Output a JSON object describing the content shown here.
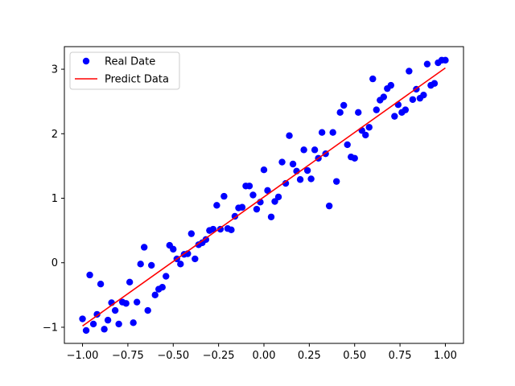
{
  "chart_data": {
    "type": "scatter",
    "title": "",
    "xlabel": "",
    "ylabel": "",
    "xlim": [
      -1.1,
      1.1
    ],
    "ylim": [
      -1.25,
      3.35
    ],
    "xticks": [
      -1.0,
      -0.75,
      -0.5,
      -0.25,
      0.0,
      0.25,
      0.5,
      0.75,
      1.0
    ],
    "xtick_labels": [
      "−1.00",
      "−0.75",
      "−0.50",
      "−0.25",
      "0.00",
      "0.25",
      "0.50",
      "0.75",
      "1.00"
    ],
    "yticks": [
      -1,
      0,
      1,
      2,
      3
    ],
    "ytick_labels": [
      "−1",
      "0",
      "1",
      "2",
      "3"
    ],
    "grid": false,
    "legend_position": "top-left",
    "series": [
      {
        "name": "Real Date",
        "kind": "scatter",
        "color": "#0000ff",
        "x": [
          -1.0,
          -0.98,
          -0.96,
          -0.94,
          -0.92,
          -0.9,
          -0.88,
          -0.86,
          -0.84,
          -0.82,
          -0.8,
          -0.78,
          -0.76,
          -0.74,
          -0.72,
          -0.7,
          -0.68,
          -0.66,
          -0.64,
          -0.62,
          -0.6,
          -0.58,
          -0.56,
          -0.54,
          -0.52,
          -0.5,
          -0.48,
          -0.46,
          -0.44,
          -0.42,
          -0.4,
          -0.38,
          -0.36,
          -0.34,
          -0.32,
          -0.3,
          -0.28,
          -0.26,
          -0.24,
          -0.22,
          -0.2,
          -0.18,
          -0.16,
          -0.14,
          -0.12,
          -0.1,
          -0.08,
          -0.06,
          -0.04,
          -0.02,
          0.0,
          0.02,
          0.04,
          0.06,
          0.08,
          0.1,
          0.12,
          0.14,
          0.16,
          0.18,
          0.2,
          0.22,
          0.24,
          0.26,
          0.28,
          0.3,
          0.32,
          0.34,
          0.36,
          0.38,
          0.4,
          0.42,
          0.44,
          0.46,
          0.48,
          0.5,
          0.52,
          0.54,
          0.56,
          0.58,
          0.6,
          0.62,
          0.64,
          0.66,
          0.68,
          0.7,
          0.72,
          0.74,
          0.76,
          0.78,
          0.8,
          0.82,
          0.84,
          0.86,
          0.88,
          0.9,
          0.92,
          0.94,
          0.96,
          0.98,
          1.0
        ],
        "y": [
          -0.87,
          -1.05,
          -0.19,
          -0.95,
          -0.8,
          -0.33,
          -1.03,
          -0.89,
          -0.62,
          -0.74,
          -0.95,
          -0.61,
          -0.63,
          -0.3,
          -0.93,
          -0.61,
          -0.02,
          0.24,
          -0.74,
          -0.04,
          -0.5,
          -0.41,
          -0.38,
          -0.21,
          0.27,
          0.21,
          0.06,
          -0.02,
          0.13,
          0.14,
          0.45,
          0.06,
          0.28,
          0.31,
          0.36,
          0.5,
          0.52,
          0.89,
          0.52,
          1.03,
          0.53,
          0.51,
          0.72,
          0.85,
          0.86,
          1.19,
          1.19,
          1.05,
          0.83,
          0.94,
          1.44,
          1.12,
          0.71,
          0.95,
          1.02,
          1.56,
          1.23,
          1.97,
          1.53,
          1.42,
          1.29,
          1.75,
          1.43,
          1.3,
          1.75,
          1.62,
          2.02,
          1.69,
          0.88,
          2.02,
          1.26,
          2.33,
          2.44,
          1.83,
          1.64,
          1.62,
          2.33,
          2.05,
          1.98,
          2.1,
          2.85,
          2.37,
          2.52,
          2.57,
          2.7,
          2.75,
          2.27,
          2.45,
          2.33,
          2.37,
          2.97,
          2.53,
          2.69,
          2.55,
          2.6,
          3.08,
          2.75,
          2.78,
          3.1,
          3.14,
          3.14
        ]
      },
      {
        "name": "Predict Data",
        "kind": "line",
        "color": "#ff0000",
        "x": [
          -1.0,
          1.0
        ],
        "y": [
          -0.98,
          3.02
        ]
      }
    ]
  }
}
